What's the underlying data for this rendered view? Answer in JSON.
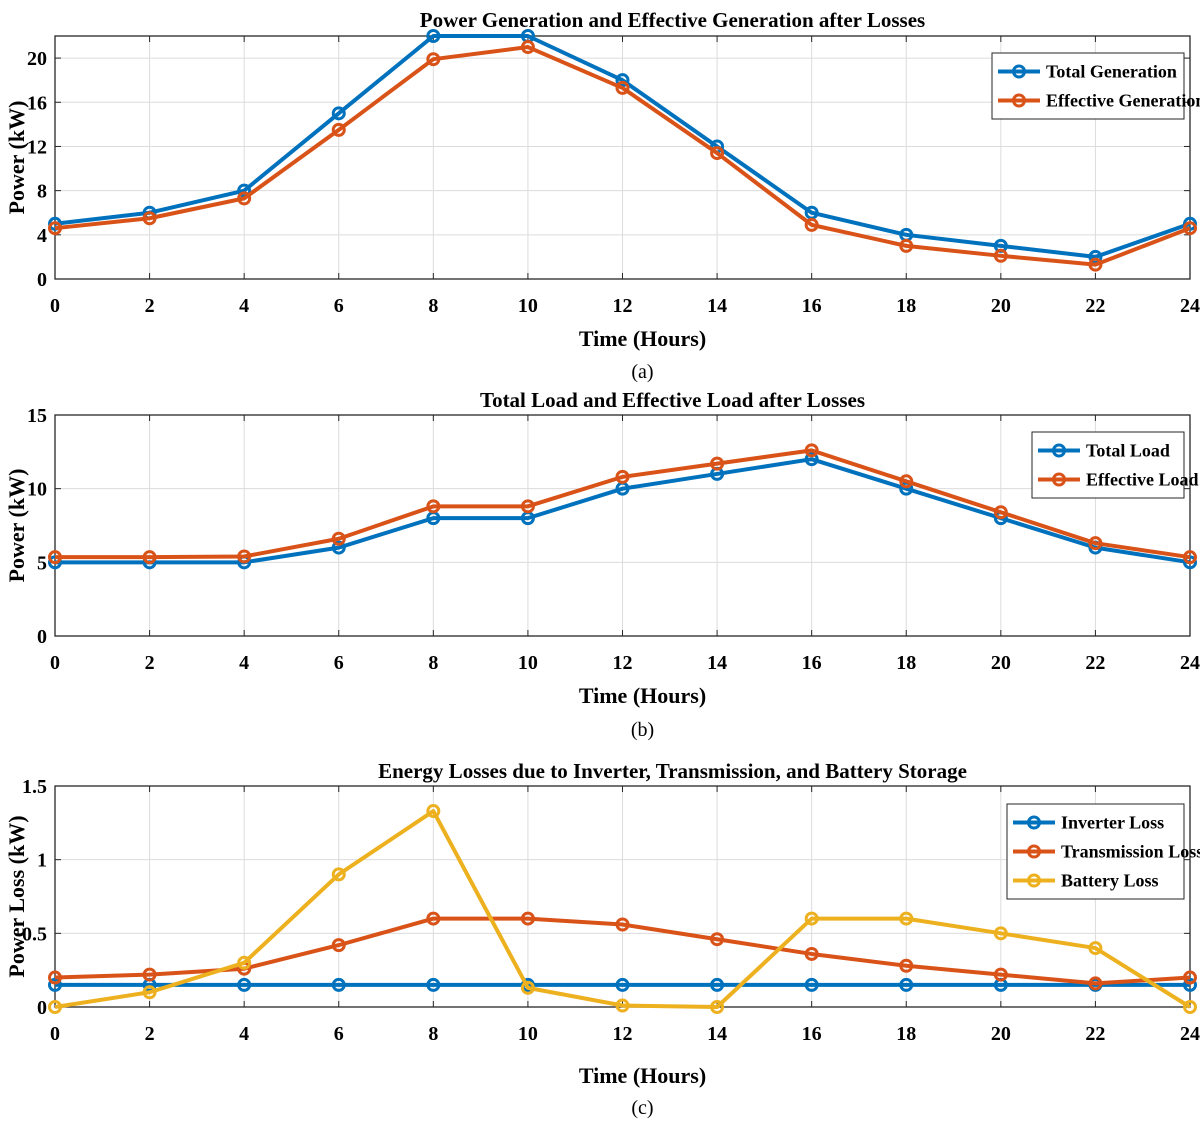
{
  "chart_data": [
    {
      "id": "a",
      "type": "line",
      "title": "Power Generation and Effective Generation after Losses",
      "xlabel": "Time (Hours)",
      "ylabel": "Power (kW)",
      "caption": "(a)",
      "xlim": [
        0,
        24
      ],
      "ylim": [
        0,
        22
      ],
      "xticks": [
        0,
        2,
        4,
        6,
        8,
        10,
        12,
        14,
        16,
        18,
        20,
        22,
        24
      ],
      "yticks": [
        0,
        4,
        8,
        12,
        16,
        20
      ],
      "ytick_labels": [
        "0",
        "4",
        "8",
        "12",
        "16",
        "20"
      ],
      "grid": true,
      "legend_position": "top-right",
      "x": [
        0,
        2,
        4,
        6,
        8,
        10,
        12,
        14,
        16,
        18,
        20,
        22,
        24
      ],
      "series": [
        {
          "name": "Total Generation",
          "color": "#0072BD",
          "values": [
            5,
            6,
            8,
            15,
            22,
            22,
            18,
            12,
            6,
            4,
            3,
            2,
            5
          ]
        },
        {
          "name": "Effective Generation",
          "color": "#D95319",
          "values": [
            4.6,
            5.5,
            7.3,
            13.5,
            19.9,
            21.0,
            17.3,
            11.4,
            4.9,
            3.0,
            2.1,
            1.3,
            4.6
          ]
        }
      ]
    },
    {
      "id": "b",
      "type": "line",
      "title": "Total Load and Effective Load after Losses",
      "xlabel": "Time (Hours)",
      "ylabel": "Power (kW)",
      "caption": "(b)",
      "xlim": [
        0,
        24
      ],
      "ylim": [
        0,
        15
      ],
      "xticks": [
        0,
        2,
        4,
        6,
        8,
        10,
        12,
        14,
        16,
        18,
        20,
        22,
        24
      ],
      "yticks": [
        0,
        5,
        10,
        15
      ],
      "ytick_labels": [
        "0",
        "5",
        "10",
        "15"
      ],
      "grid": true,
      "legend_position": "top-right",
      "x": [
        0,
        2,
        4,
        6,
        8,
        10,
        12,
        14,
        16,
        18,
        20,
        22,
        24
      ],
      "series": [
        {
          "name": "Total Load",
          "color": "#0072BD",
          "values": [
            5,
            5,
            5,
            6,
            8,
            8,
            10,
            11,
            12,
            10,
            8,
            6,
            5
          ]
        },
        {
          "name": "Effective Load",
          "color": "#D95319",
          "values": [
            5.35,
            5.35,
            5.4,
            6.6,
            8.8,
            8.8,
            10.8,
            11.7,
            12.6,
            10.5,
            8.4,
            6.3,
            5.35
          ]
        }
      ]
    },
    {
      "id": "c",
      "type": "line",
      "title": "Energy Losses due to Inverter, Transmission, and Battery Storage",
      "xlabel": "Time (Hours)",
      "ylabel": "Power Loss (kW)",
      "caption": "(c)",
      "xlim": [
        0,
        24
      ],
      "ylim": [
        0,
        1.5
      ],
      "xticks": [
        0,
        2,
        4,
        6,
        8,
        10,
        12,
        14,
        16,
        18,
        20,
        22,
        24
      ],
      "yticks": [
        0,
        0.5,
        1,
        1.5
      ],
      "ytick_labels": [
        "0",
        "0.5",
        "1",
        "1.5"
      ],
      "grid": true,
      "legend_position": "top-right",
      "x": [
        0,
        2,
        4,
        6,
        8,
        10,
        12,
        14,
        16,
        18,
        20,
        22,
        24
      ],
      "series": [
        {
          "name": "Inverter Loss",
          "color": "#0072BD",
          "values": [
            0.15,
            0.15,
            0.15,
            0.15,
            0.15,
            0.15,
            0.15,
            0.15,
            0.15,
            0.15,
            0.15,
            0.15,
            0.15
          ]
        },
        {
          "name": "Transmission Loss",
          "color": "#D95319",
          "values": [
            0.2,
            0.22,
            0.26,
            0.42,
            0.6,
            0.6,
            0.56,
            0.46,
            0.36,
            0.28,
            0.22,
            0.16,
            0.2
          ]
        },
        {
          "name": "Battery Loss",
          "color": "#EDB120",
          "values": [
            0.0,
            0.1,
            0.3,
            0.9,
            1.33,
            0.13,
            0.01,
            0.0,
            0.6,
            0.6,
            0.5,
            0.4,
            0.0
          ]
        }
      ]
    }
  ]
}
